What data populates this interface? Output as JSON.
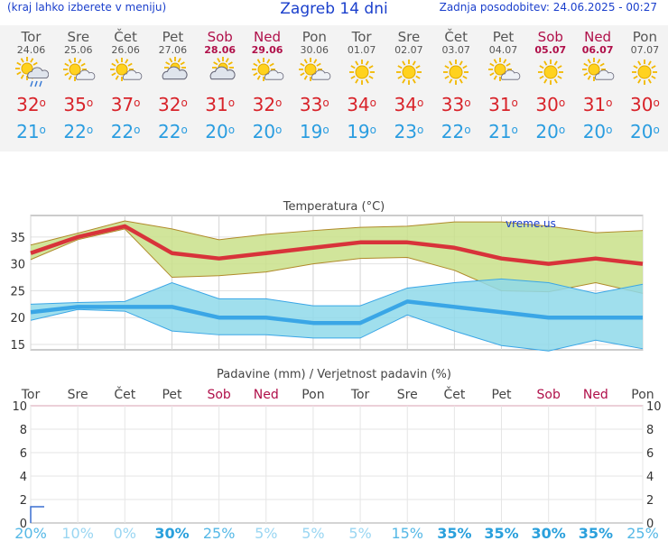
{
  "header": {
    "hint": "(kraj lahko izberete v meniju)",
    "title": "Zagreb 14 dni",
    "updated": "Zadnja posodobitev: 24.06.2025 - 00:27"
  },
  "days": [
    {
      "name": "Tor",
      "date": "24.06",
      "max": "32",
      "min": "21",
      "icon": "sun-cloud-rain-icon",
      "weekend": false
    },
    {
      "name": "Sre",
      "date": "25.06",
      "max": "35",
      "min": "22",
      "icon": "sun-cloud-icon",
      "weekend": false
    },
    {
      "name": "Čet",
      "date": "26.06",
      "max": "37",
      "min": "22",
      "icon": "sun-cloud-icon",
      "weekend": false
    },
    {
      "name": "Pet",
      "date": "27.06",
      "max": "32",
      "min": "22",
      "icon": "cloud-sun-icon",
      "weekend": false
    },
    {
      "name": "Sob",
      "date": "28.06",
      "max": "31",
      "min": "20",
      "icon": "cloud-sun-icon",
      "weekend": true
    },
    {
      "name": "Ned",
      "date": "29.06",
      "max": "32",
      "min": "20",
      "icon": "sun-cloud-icon",
      "weekend": true
    },
    {
      "name": "Pon",
      "date": "30.06",
      "max": "33",
      "min": "19",
      "icon": "sun-cloud-icon",
      "weekend": false
    },
    {
      "name": "Tor",
      "date": "01.07",
      "max": "34",
      "min": "19",
      "icon": "sun-icon",
      "weekend": false
    },
    {
      "name": "Sre",
      "date": "02.07",
      "max": "34",
      "min": "23",
      "icon": "sun-icon",
      "weekend": false
    },
    {
      "name": "Čet",
      "date": "03.07",
      "max": "33",
      "min": "22",
      "icon": "sun-icon",
      "weekend": false
    },
    {
      "name": "Pet",
      "date": "04.07",
      "max": "31",
      "min": "21",
      "icon": "sun-cloud-icon",
      "weekend": false
    },
    {
      "name": "Sob",
      "date": "05.07",
      "max": "30",
      "min": "20",
      "icon": "sun-icon",
      "weekend": true
    },
    {
      "name": "Ned",
      "date": "06.07",
      "max": "31",
      "min": "20",
      "icon": "sun-cloud-icon",
      "weekend": true
    },
    {
      "name": "Pon",
      "date": "07.07",
      "max": "30",
      "min": "20",
      "icon": "sun-icon",
      "weekend": false
    }
  ],
  "deg_symbol": "o",
  "chart_data": [
    {
      "type": "line",
      "title": "Temperatura (°C)",
      "watermark": "vreme.us",
      "ylim": [
        14,
        39
      ],
      "yticks": [
        "15",
        "20",
        "25",
        "30",
        "35"
      ],
      "x": [
        "24.06",
        "25.06",
        "26.06",
        "27.06",
        "28.06",
        "29.06",
        "30.06",
        "01.07",
        "02.07",
        "03.07",
        "04.07",
        "05.07",
        "06.07",
        "07.07"
      ],
      "series": [
        {
          "values": [
            32,
            35,
            37,
            32,
            31,
            32,
            33,
            34,
            34,
            33,
            31,
            30,
            31,
            30
          ],
          "color": "#d8333a"
        },
        {
          "values": [
            21,
            22,
            22,
            22,
            20,
            20,
            19,
            19,
            23,
            22,
            21,
            20,
            20,
            20
          ],
          "color": "#3aa6e6"
        }
      ],
      "max_band": {
        "upper": [
          33.5,
          35.7,
          38,
          36.5,
          34.5,
          35.5,
          36.2,
          36.8,
          37,
          37.8,
          37.8,
          37,
          35.8,
          36.2
        ],
        "lower": [
          30.8,
          34.5,
          36.5,
          27.5,
          27.8,
          28.5,
          30,
          31,
          31.2,
          28.8,
          25,
          24.8,
          26.5,
          24.5
        ],
        "color": "#c9e08a"
      },
      "min_band": {
        "upper": [
          22.5,
          22.8,
          23,
          26.5,
          23.5,
          23.5,
          22.2,
          22.2,
          25.5,
          26.5,
          27.2,
          26.5,
          24.5,
          26.2
        ],
        "lower": [
          19.5,
          21.5,
          21.2,
          17.5,
          16.8,
          16.8,
          16.2,
          16.2,
          20.5,
          17.5,
          14.8,
          13.8,
          15.8,
          14.2
        ],
        "color": "#8fd9ea"
      }
    },
    {
      "type": "bar",
      "title": "Padavine (mm) / Verjetnost padavin (%)",
      "categories": [
        "Tor",
        "Sre",
        "Čet",
        "Pet",
        "Sob",
        "Ned",
        "Pon",
        "Tor",
        "Sre",
        "Čet",
        "Pet",
        "Sob",
        "Ned",
        "Pon"
      ],
      "weekend": [
        false,
        false,
        false,
        false,
        true,
        true,
        false,
        false,
        false,
        false,
        false,
        true,
        true,
        false
      ],
      "ylim": [
        0,
        10
      ],
      "yticks": [
        "0",
        "2",
        "4",
        "6",
        "8",
        "10"
      ],
      "precip_mm": [
        0,
        0,
        0,
        0,
        0,
        0,
        0,
        0,
        0,
        0,
        0,
        0,
        0,
        0
      ],
      "probability": [
        "20%",
        "10%",
        "0%",
        "30%",
        "25%",
        "5%",
        "5%",
        "5%",
        "15%",
        "35%",
        "35%",
        "30%",
        "35%",
        "25%"
      ],
      "prob_values": [
        20,
        10,
        0,
        30,
        25,
        5,
        5,
        5,
        15,
        35,
        35,
        30,
        35,
        25
      ]
    }
  ]
}
